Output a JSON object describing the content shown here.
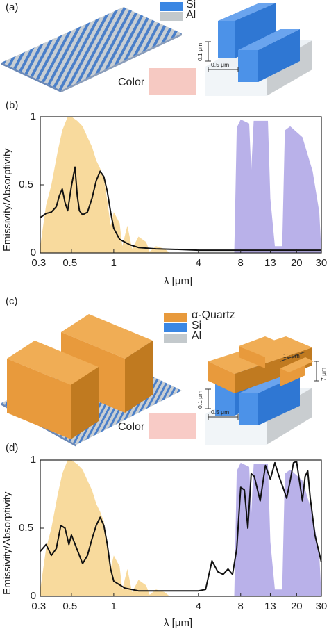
{
  "colors": {
    "si": "#3b87e3",
    "al": "#c3c9cc",
    "quartz": "#e89a3c",
    "solar": "#f5cd7c",
    "atm_window": "#9b90e0",
    "color_a": "#f6c9c2",
    "color_c": "#f8cbc6"
  },
  "panel_a": {
    "label": "(a)",
    "legend": [
      {
        "label": "Si",
        "color": "#3b87e3"
      },
      {
        "label": "Al",
        "color": "#c3c9cc"
      }
    ],
    "color_label": "Color",
    "dim_height": "0.1 μm",
    "dim_width": "0.5 μm"
  },
  "panel_c": {
    "label": "(c)",
    "legend": [
      {
        "label": "α-Quartz",
        "color": "#e89a3c"
      },
      {
        "label": "Si",
        "color": "#3b87e3"
      },
      {
        "label": "Al",
        "color": "#c3c9cc"
      }
    ],
    "color_label": "Color",
    "dim_height": "0.1 μm",
    "dim_width": "0.5 μm",
    "dim_quartz_width": "10 μm",
    "dim_quartz_height": "7 μm"
  },
  "chart_data": [
    {
      "type": "line",
      "panel": "(b)",
      "xlabel": "λ [μm]",
      "ylabel": "Emissivity/Absorptivity",
      "x_scale": "log",
      "xlim": [
        0.3,
        30
      ],
      "ylim": [
        0,
        1
      ],
      "x_ticks": [
        "0.3",
        "0.5",
        "1",
        "4",
        "8",
        "13",
        "20",
        "30"
      ],
      "y_ticks": [
        "0",
        "0.5",
        "1"
      ],
      "x": [
        0.3,
        0.33,
        0.36,
        0.39,
        0.41,
        0.43,
        0.45,
        0.47,
        0.5,
        0.53,
        0.55,
        0.57,
        0.6,
        0.65,
        0.7,
        0.75,
        0.8,
        0.85,
        0.9,
        0.95,
        1.0,
        1.1,
        1.3,
        1.5,
        2,
        3,
        4,
        6,
        8,
        10,
        13,
        20,
        30
      ],
      "series": [
        {
          "values": [
            0.26,
            0.29,
            0.3,
            0.34,
            0.42,
            0.47,
            0.37,
            0.31,
            0.49,
            0.63,
            0.42,
            0.31,
            0.28,
            0.3,
            0.4,
            0.53,
            0.6,
            0.56,
            0.45,
            0.3,
            0.18,
            0.1,
            0.06,
            0.04,
            0.03,
            0.025,
            0.02,
            0.02,
            0.02,
            0.02,
            0.02,
            0.02,
            0.02
          ]
        }
      ]
    },
    {
      "type": "line",
      "panel": "(d)",
      "xlabel": "λ [μm]",
      "ylabel": "Emissivity/Absorptivity",
      "x_scale": "log",
      "xlim": [
        0.3,
        30
      ],
      "ylim": [
        0,
        1
      ],
      "x_ticks": [
        "0.3",
        "0.5",
        "1",
        "4",
        "8",
        "13",
        "20",
        "30"
      ],
      "y_ticks": [
        "0",
        "0.5",
        "1"
      ],
      "x": [
        0.3,
        0.33,
        0.36,
        0.39,
        0.42,
        0.45,
        0.48,
        0.5,
        0.55,
        0.6,
        0.65,
        0.7,
        0.75,
        0.8,
        0.85,
        0.9,
        0.95,
        1.0,
        1.2,
        1.5,
        2,
        3,
        4,
        4.5,
        5,
        5.5,
        6,
        6.5,
        7,
        7.5,
        8,
        8.5,
        9,
        9.5,
        10,
        11,
        12,
        13,
        14,
        15,
        16,
        17,
        18,
        19,
        20,
        21,
        22,
        23,
        24,
        25,
        27,
        30
      ],
      "series": [
        {
          "values": [
            0.33,
            0.38,
            0.3,
            0.35,
            0.52,
            0.5,
            0.38,
            0.45,
            0.34,
            0.24,
            0.3,
            0.42,
            0.52,
            0.58,
            0.52,
            0.38,
            0.2,
            0.11,
            0.06,
            0.04,
            0.04,
            0.04,
            0.04,
            0.05,
            0.26,
            0.18,
            0.16,
            0.2,
            0.16,
            0.35,
            0.8,
            0.78,
            0.5,
            0.9,
            0.88,
            0.7,
            0.96,
            0.86,
            0.98,
            0.88,
            0.8,
            0.72,
            0.85,
            0.98,
            0.99,
            0.84,
            0.7,
            0.88,
            0.92,
            0.72,
            0.45,
            0.25
          ]
        }
      ]
    }
  ]
}
